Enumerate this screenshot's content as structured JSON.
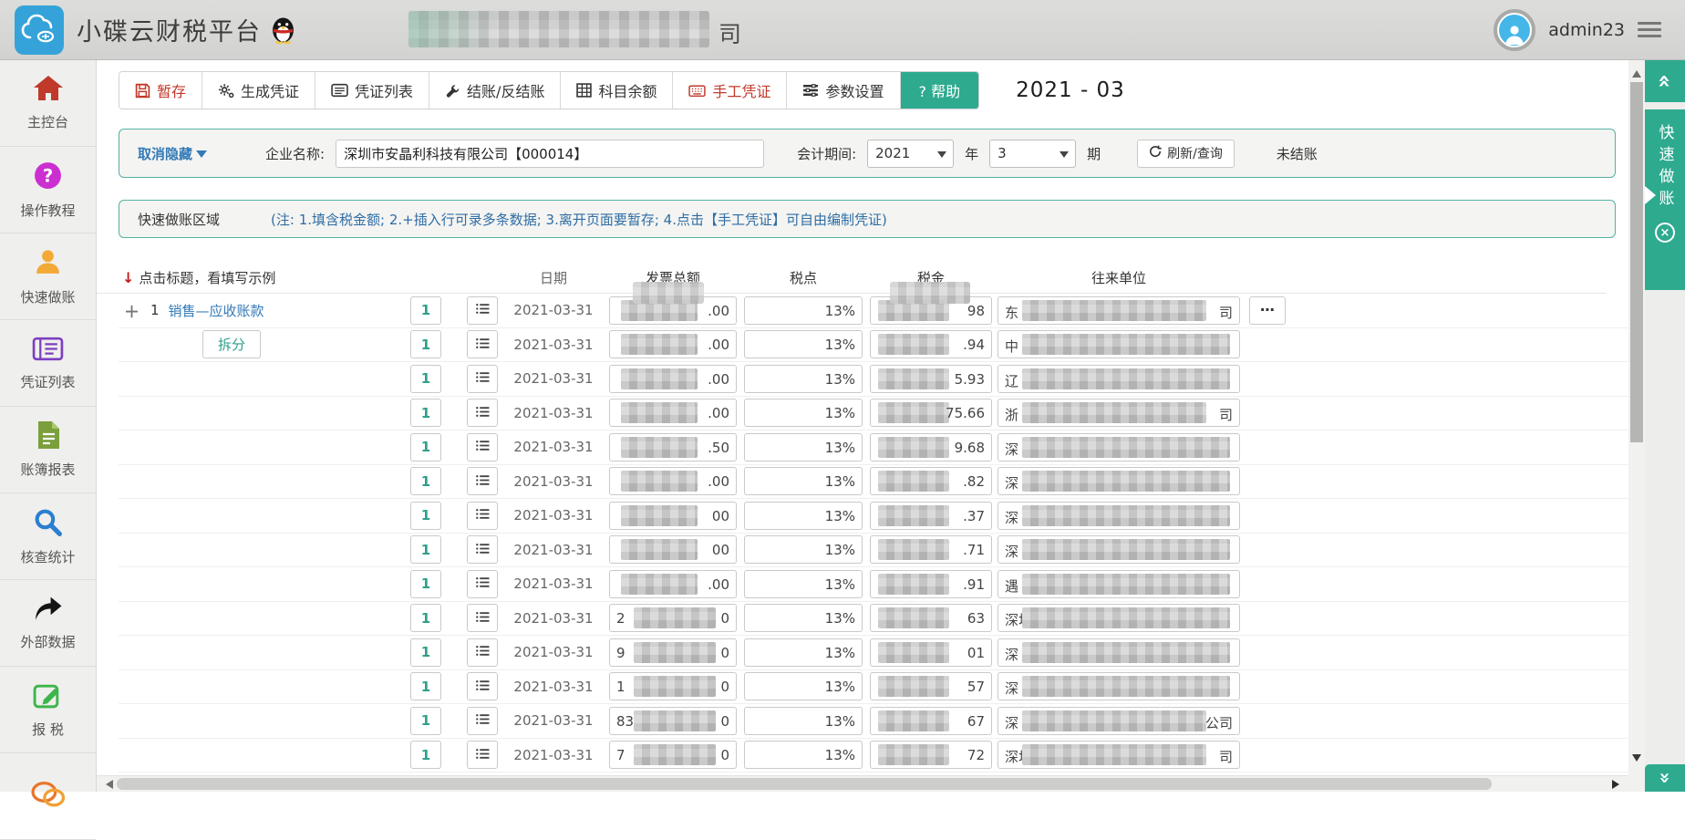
{
  "topbar": {
    "brand": "小碟云财税平台",
    "company_tail": "司",
    "username": "admin23"
  },
  "sidebar": {
    "items": [
      {
        "label": "主控台",
        "icon": "home-icon"
      },
      {
        "label": "操作教程",
        "icon": "question-icon"
      },
      {
        "label": "快速做账",
        "icon": "user-icon"
      },
      {
        "label": "凭证列表",
        "icon": "voucher-list-icon"
      },
      {
        "label": "账簿报表",
        "icon": "report-icon"
      },
      {
        "label": "核查统计",
        "icon": "search-icon"
      },
      {
        "label": "外部数据",
        "icon": "external-data-icon"
      },
      {
        "label": "报 税",
        "icon": "tax-edit-icon"
      },
      {
        "label": "",
        "icon": "chat-icon"
      }
    ]
  },
  "toolbar": {
    "buttons": [
      {
        "label": "暂存",
        "icon": "save-icon",
        "style": "red"
      },
      {
        "label": "生成凭证",
        "icon": "gears-icon",
        "style": "dark"
      },
      {
        "label": "凭证列表",
        "icon": "voucher-card-icon",
        "style": "dark"
      },
      {
        "label": "结账/反结账",
        "icon": "wrench-icon",
        "style": "dark"
      },
      {
        "label": "科目余额",
        "icon": "balance-table-icon",
        "style": "dark"
      },
      {
        "label": "手工凭证",
        "icon": "keyboard-icon",
        "style": "red"
      },
      {
        "label": "参数设置",
        "icon": "params-icon",
        "style": "dark"
      },
      {
        "label": "? 帮助",
        "icon": "",
        "style": "help"
      }
    ],
    "period_display": "2021 - 03"
  },
  "filter": {
    "collapse_label": "取消隐藏",
    "company_label": "企业名称:",
    "company_value": "深圳市安晶利科技有限公司【000014】",
    "period_label": "会计期间:",
    "year_value": "2021",
    "year_unit": "年",
    "month_value": "3",
    "month_unit": "期",
    "refresh_label": "刷新/查询",
    "status": "未结账"
  },
  "note": {
    "title": "快速做账区域",
    "tip": "(注: 1.填含税金额; 2.+插入行可录多条数据; 3.离开页面要暂存; 4.点击【手工凭证】可自由编制凭证)"
  },
  "table": {
    "hint": "点击标题，看填写示例",
    "columns": [
      "日期",
      "发票总额",
      "税点",
      "税金",
      "往来单位"
    ],
    "more_label": "⋯",
    "rows": [
      {
        "plus": "＋",
        "num": "1",
        "account": "销售—应收账款",
        "qty": "1",
        "date": "2021-03-31",
        "amt_tail": ".00",
        "rate": "13%",
        "tax_tail": "98",
        "co_head": "东",
        "co_tail": "司",
        "more": "⋯"
      },
      {
        "split": "拆分",
        "qty": "1",
        "date": "2021-03-31",
        "amt_tail": ".00",
        "rate": "13%",
        "tax_tail": ".94",
        "co_head": "中",
        "co_tail": ""
      },
      {
        "qty": "1",
        "date": "2021-03-31",
        "amt_tail": ".00",
        "rate": "13%",
        "tax_tail": "5.93",
        "co_head": "辽",
        "co_tail": ""
      },
      {
        "qty": "1",
        "date": "2021-03-31",
        "amt_tail": ".00",
        "rate": "13%",
        "tax_tail": "75.66",
        "co_head": "浙",
        "co_tail": "司"
      },
      {
        "qty": "1",
        "date": "2021-03-31",
        "amt_tail": ".50",
        "rate": "13%",
        "tax_tail": "9.68",
        "co_head": "深",
        "co_tail": ""
      },
      {
        "qty": "1",
        "date": "2021-03-31",
        "amt_tail": ".00",
        "rate": "13%",
        "tax_tail": ".82",
        "co_head": "深",
        "co_tail": ""
      },
      {
        "qty": "1",
        "date": "2021-03-31",
        "amt_tail": "00",
        "rate": "13%",
        "tax_tail": ".37",
        "co_head": "深",
        "co_tail": ""
      },
      {
        "qty": "1",
        "date": "2021-03-31",
        "amt_tail": "00",
        "rate": "13%",
        "tax_tail": ".71",
        "co_head": "深",
        "co_tail": ""
      },
      {
        "qty": "1",
        "date": "2021-03-31",
        "amt_tail": ".00",
        "rate": "13%",
        "tax_tail": ".91",
        "co_head": "遇",
        "co_tail": ""
      },
      {
        "qty": "1",
        "date": "2021-03-31",
        "amt_head": "2",
        "amt_tail": "0",
        "rate": "13%",
        "tax_tail": "63",
        "co_head": "深圳",
        "co_tail": ""
      },
      {
        "qty": "1",
        "date": "2021-03-31",
        "amt_head": "9",
        "amt_tail": "0",
        "rate": "13%",
        "tax_tail": "01",
        "co_head": "深",
        "co_tail": ""
      },
      {
        "qty": "1",
        "date": "2021-03-31",
        "amt_head": "1",
        "amt_tail": "0",
        "rate": "13%",
        "tax_tail": "57",
        "co_head": "深",
        "co_tail": ""
      },
      {
        "qty": "1",
        "date": "2021-03-31",
        "amt_head": "83",
        "amt_tail": "0",
        "rate": "13%",
        "tax_tail": "67",
        "co_head": "深",
        "co_tail": "公司"
      },
      {
        "qty": "1",
        "date": "2021-03-31",
        "amt_head": "7",
        "amt_tail": "0",
        "rate": "13%",
        "tax_tail": "72",
        "co_head": "深圳",
        "co_tail": "司"
      }
    ]
  },
  "rail": {
    "panel_label": "快速做账"
  }
}
